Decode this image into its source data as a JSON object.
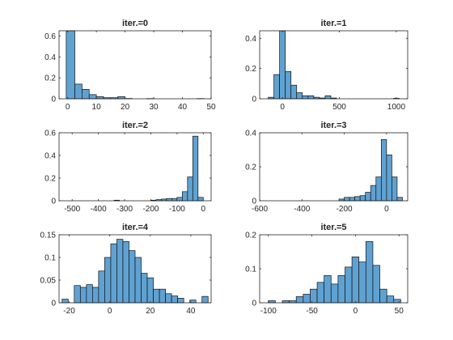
{
  "chart_data": [
    {
      "type": "bar",
      "title": "iter.=0",
      "xlim": [
        -3,
        50
      ],
      "ylim": [
        0,
        0.65
      ],
      "xticks": [
        0,
        10,
        20,
        30,
        40,
        50
      ],
      "yticks": [
        0,
        0.2,
        0.4,
        0.6
      ],
      "ytick_labels": [
        "0",
        "0.2",
        "0.4",
        "0.6"
      ],
      "bins": [
        [
          -0.5,
          2.5,
          0.65
        ],
        [
          2.5,
          5.0,
          0.14
        ],
        [
          5.0,
          7.5,
          0.09
        ],
        [
          7.5,
          10.0,
          0.04
        ],
        [
          10.0,
          12.5,
          0.02
        ],
        [
          12.5,
          15.0,
          0.01
        ],
        [
          15.0,
          17.5,
          0.01
        ],
        [
          17.5,
          20.0,
          0.02
        ],
        [
          20.0,
          22.5,
          0.003
        ],
        [
          27.5,
          30.0,
          0.002
        ],
        [
          45.0,
          47.5,
          0.002
        ]
      ]
    },
    {
      "type": "bar",
      "title": "iter.=1",
      "xlim": [
        -200,
        1100
      ],
      "ylim": [
        0,
        0.45
      ],
      "xticks": [
        0,
        500,
        1000
      ],
      "yticks": [
        0,
        0.2,
        0.4
      ],
      "ytick_labels": [
        "0",
        "0.2",
        "0.4"
      ],
      "bins": [
        [
          -125,
          -75,
          0.01
        ],
        [
          -75,
          -25,
          0.16
        ],
        [
          -25,
          25,
          0.45
        ],
        [
          25,
          75,
          0.18
        ],
        [
          75,
          125,
          0.09
        ],
        [
          125,
          175,
          0.04
        ],
        [
          175,
          225,
          0.02
        ],
        [
          225,
          275,
          0.02
        ],
        [
          275,
          325,
          0.01
        ],
        [
          325,
          375,
          0.005
        ],
        [
          375,
          425,
          0.02
        ],
        [
          425,
          475,
          0.005
        ],
        [
          975,
          1025,
          0.003
        ]
      ]
    },
    {
      "type": "bar",
      "title": "iter.=2",
      "xlim": [
        -550,
        30
      ],
      "ylim": [
        0,
        0.6
      ],
      "xticks": [
        -500,
        -400,
        -300,
        -200,
        -100,
        0
      ],
      "yticks": [
        0,
        0.2,
        0.4,
        0.6
      ],
      "ytick_labels": [
        "0",
        "0.2",
        "0.4",
        "0.6"
      ],
      "bins": [
        [
          -340,
          -320,
          0.005
        ],
        [
          -200,
          -180,
          0.005
        ],
        [
          -180,
          -160,
          0.01
        ],
        [
          -160,
          -140,
          0.015
        ],
        [
          -140,
          -120,
          0.02
        ],
        [
          -120,
          -100,
          0.02
        ],
        [
          -100,
          -80,
          0.03
        ],
        [
          -80,
          -60,
          0.08
        ],
        [
          -60,
          -40,
          0.21
        ],
        [
          -40,
          -20,
          0.57
        ],
        [
          -20,
          0,
          0.03
        ]
      ]
    },
    {
      "type": "bar",
      "title": "iter.=3",
      "xlim": [
        -600,
        100
      ],
      "ylim": [
        0,
        0.4
      ],
      "xticks": [
        -600,
        -400,
        -200,
        0
      ],
      "yticks": [
        0,
        0.2,
        0.4
      ],
      "ytick_labels": [
        "0",
        "0.2",
        "0.4"
      ],
      "bins": [
        [
          -225,
          -200,
          0.01
        ],
        [
          -200,
          -175,
          0.02
        ],
        [
          -175,
          -150,
          0.02
        ],
        [
          -150,
          -125,
          0.025
        ],
        [
          -125,
          -100,
          0.03
        ],
        [
          -100,
          -75,
          0.05
        ],
        [
          -75,
          -50,
          0.09
        ],
        [
          -50,
          -25,
          0.14
        ],
        [
          -25,
          0,
          0.36
        ],
        [
          0,
          25,
          0.27
        ],
        [
          25,
          50,
          0.14
        ],
        [
          50,
          75,
          0.02
        ]
      ]
    },
    {
      "type": "bar",
      "title": "iter.=4",
      "xlim": [
        -25,
        50
      ],
      "ylim": [
        0,
        0.15
      ],
      "xticks": [
        -20,
        0,
        20,
        40
      ],
      "yticks": [
        0,
        0.05,
        0.1,
        0.15
      ],
      "ytick_labels": [
        "0",
        "0.05",
        "0.1",
        "0.15"
      ],
      "bins": [
        [
          -23.5,
          -20.5,
          0.008
        ],
        [
          -17.5,
          -14.5,
          0.038
        ],
        [
          -14.5,
          -11.5,
          0.034
        ],
        [
          -11.5,
          -8.5,
          0.04
        ],
        [
          -8.5,
          -5.5,
          0.034
        ],
        [
          -5.5,
          -2.5,
          0.07
        ],
        [
          -2.5,
          0.5,
          0.1
        ],
        [
          0.5,
          3.5,
          0.13
        ],
        [
          3.5,
          6.5,
          0.14
        ],
        [
          6.5,
          9.5,
          0.135
        ],
        [
          9.5,
          12.5,
          0.115
        ],
        [
          12.5,
          15.5,
          0.1
        ],
        [
          15.5,
          18.5,
          0.065
        ],
        [
          18.5,
          21.5,
          0.055
        ],
        [
          21.5,
          24.5,
          0.03
        ],
        [
          24.5,
          27.5,
          0.03
        ],
        [
          27.5,
          30.5,
          0.02
        ],
        [
          30.5,
          33.5,
          0.015
        ],
        [
          33.5,
          36.5,
          0.01
        ],
        [
          39.5,
          42.5,
          0.006
        ],
        [
          45.5,
          48.5,
          0.014
        ]
      ]
    },
    {
      "type": "bar",
      "title": "iter.=5",
      "xlim": [
        -110,
        60
      ],
      "ylim": [
        0,
        0.2
      ],
      "xticks": [
        -100,
        -50,
        0,
        50
      ],
      "yticks": [
        0,
        0.1,
        0.2
      ],
      "ytick_labels": [
        "0",
        "0.1",
        "0.2"
      ],
      "bins": [
        [
          -100,
          -92,
          0.006
        ],
        [
          -84,
          -76,
          0.006
        ],
        [
          -76,
          -68,
          0.006
        ],
        [
          -68,
          -60,
          0.018
        ],
        [
          -60,
          -52,
          0.025
        ],
        [
          -52,
          -44,
          0.04
        ],
        [
          -44,
          -36,
          0.06
        ],
        [
          -36,
          -28,
          0.08
        ],
        [
          -28,
          -20,
          0.055
        ],
        [
          -20,
          -12,
          0.08
        ],
        [
          -12,
          -4,
          0.105
        ],
        [
          -4,
          4,
          0.135
        ],
        [
          4,
          12,
          0.12
        ],
        [
          12,
          20,
          0.18
        ],
        [
          20,
          28,
          0.11
        ],
        [
          28,
          36,
          0.04
        ],
        [
          36,
          44,
          0.02
        ],
        [
          44,
          52,
          0.01
        ]
      ]
    }
  ]
}
